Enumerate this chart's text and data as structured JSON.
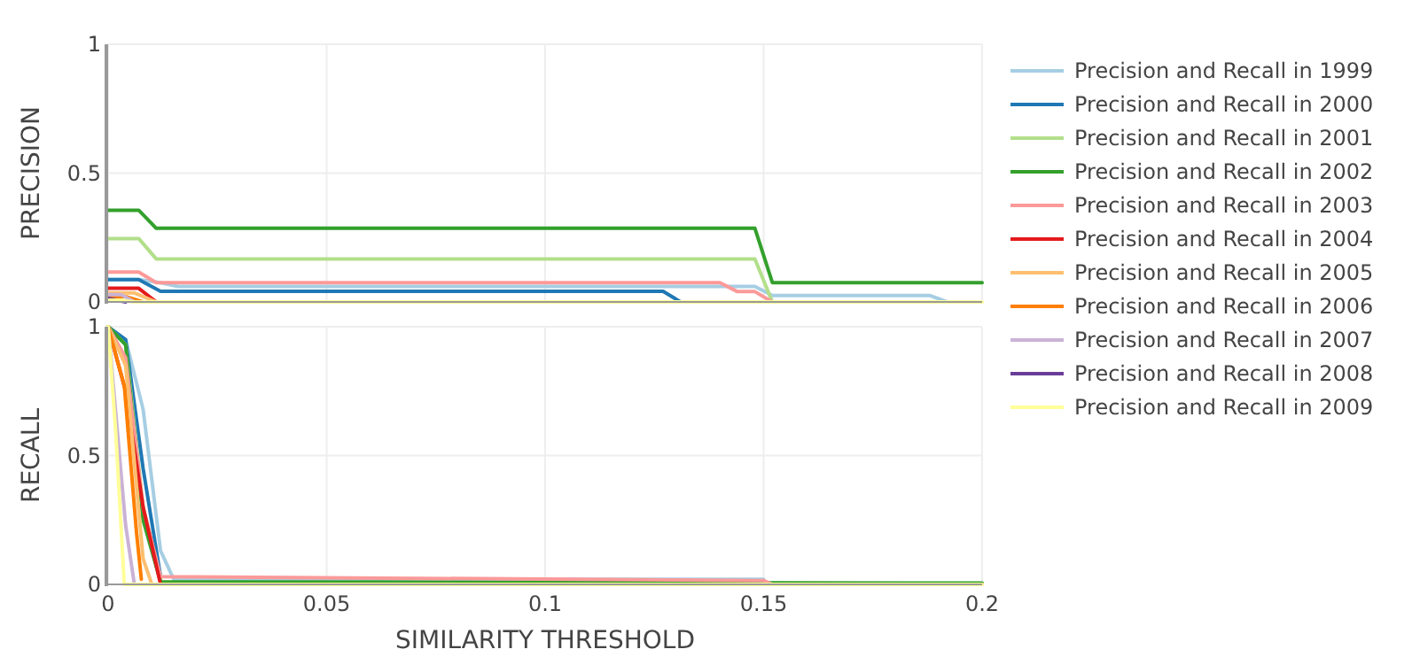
{
  "chart_data": [
    {
      "type": "line",
      "ylabel": "PRECISION",
      "xlim": [
        0,
        0.2
      ],
      "xticks": [
        0,
        0.05,
        0.1,
        0.15,
        0.2
      ],
      "ylim": [
        0,
        1
      ],
      "yticks": [
        0,
        0.5,
        1
      ],
      "grid": true,
      "tick_labels": "y",
      "legend": "right",
      "series": [
        {
          "name": "Precision and Recall in 1999",
          "color": "#a6cee3",
          "x": [
            0,
            0.007,
            0.012,
            0.016,
            0.148,
            0.152,
            0.188,
            0.192
          ],
          "values": [
            0.087,
            0.087,
            0.075,
            0.06,
            0.06,
            0.025,
            0.025,
            0
          ]
        },
        {
          "name": "Precision and Recall in 2000",
          "color": "#1f78b4",
          "x": [
            0,
            0.007,
            0.012,
            0.127,
            0.131
          ],
          "values": [
            0.087,
            0.087,
            0.041,
            0.041,
            0
          ]
        },
        {
          "name": "Precision and Recall in 2001",
          "color": "#b2df8a",
          "x": [
            0,
            0.007,
            0.011,
            0.148,
            0.152
          ],
          "values": [
            0.246,
            0.246,
            0.167,
            0.167,
            0
          ]
        },
        {
          "name": "Precision and Recall in 2002",
          "color": "#33a02c",
          "x": [
            0,
            0.007,
            0.011,
            0.148,
            0.152,
            0.2
          ],
          "values": [
            0.356,
            0.356,
            0.286,
            0.286,
            0.075,
            0.075
          ]
        },
        {
          "name": "Precision and Recall in 2003",
          "color": "#fb9a99",
          "x": [
            0,
            0.007,
            0.011,
            0.14,
            0.144,
            0.148,
            0.152
          ],
          "values": [
            0.116,
            0.116,
            0.075,
            0.075,
            0.04,
            0.04,
            0
          ]
        },
        {
          "name": "Precision and Recall in 2004",
          "color": "#e31a1c",
          "x": [
            0,
            0.007,
            0.011
          ],
          "values": [
            0.053,
            0.053,
            0
          ]
        },
        {
          "name": "Precision and Recall in 2005",
          "color": "#fdbf6f",
          "x": [
            0,
            0.006,
            0.011
          ],
          "values": [
            0.035,
            0.035,
            0
          ]
        },
        {
          "name": "Precision and Recall in 2006",
          "color": "#ff7f00",
          "x": [
            0,
            0.004,
            0.008
          ],
          "values": [
            0.021,
            0.021,
            0
          ]
        },
        {
          "name": "Precision and Recall in 2007",
          "color": "#cab2d6",
          "x": [
            0,
            0.003,
            0.006
          ],
          "values": [
            0.028,
            0.028,
            0
          ]
        },
        {
          "name": "Precision and Recall in 2008",
          "color": "#6a3d9a",
          "x": [
            0,
            0.004
          ],
          "values": [
            0.014,
            0
          ]
        },
        {
          "name": "Precision and Recall in 2009",
          "color": "#ffff99",
          "x": [
            0,
            0.003,
            0.006,
            0.2
          ],
          "values": [
            0.007,
            0.007,
            0,
            0
          ]
        }
      ]
    },
    {
      "type": "line",
      "xlabel": "SIMILARITY THRESHOLD",
      "ylabel": "RECALL",
      "xlim": [
        0,
        0.2
      ],
      "xticks": [
        0,
        0.05,
        0.1,
        0.15,
        0.2
      ],
      "ylim": [
        0,
        1
      ],
      "yticks": [
        0,
        0.5,
        1
      ],
      "grid": true,
      "series": [
        {
          "color": "#a6cee3",
          "x": [
            0,
            0.004,
            0.008,
            0.012,
            0.015,
            0.15
          ],
          "values": [
            1,
            0.95,
            0.68,
            0.13,
            0.02,
            0.02
          ]
        },
        {
          "color": "#1f78b4",
          "x": [
            0,
            0.004,
            0.008,
            0.012
          ],
          "values": [
            1,
            0.95,
            0.45,
            0.03
          ]
        },
        {
          "color": "#b2df8a",
          "x": [
            0,
            0.004,
            0.008,
            0.012
          ],
          "values": [
            1,
            0.93,
            0.3,
            0.02
          ]
        },
        {
          "color": "#33a02c",
          "x": [
            0,
            0.004,
            0.008,
            0.012,
            0.2
          ],
          "values": [
            1,
            0.93,
            0.25,
            0.01,
            0.005
          ]
        },
        {
          "color": "#fb9a99",
          "x": [
            0,
            0.004,
            0.008,
            0.012,
            0.15,
            0.152,
            0.2
          ],
          "values": [
            1,
            0.88,
            0.3,
            0.03,
            0.015,
            0,
            0
          ]
        },
        {
          "color": "#e31a1c",
          "x": [
            0,
            0.004,
            0.008,
            0.012
          ],
          "values": [
            1,
            0.75,
            0.3,
            0
          ]
        },
        {
          "color": "#fdbf6f",
          "x": [
            0,
            0.004,
            0.008,
            0.01
          ],
          "values": [
            1,
            0.85,
            0.1,
            0
          ]
        },
        {
          "color": "#ff7f00",
          "x": [
            0,
            0.0037,
            0.0065,
            0.0076
          ],
          "values": [
            1,
            0.77,
            0.2,
            0.02
          ]
        },
        {
          "color": "#cab2d6",
          "x": [
            0,
            0.004,
            0.006
          ],
          "values": [
            1,
            0.23,
            0
          ]
        },
        {
          "color": "#ffff99",
          "x": [
            0,
            0.0017,
            0.0037,
            0.2
          ],
          "values": [
            1,
            0.6,
            0,
            0
          ]
        }
      ]
    }
  ]
}
